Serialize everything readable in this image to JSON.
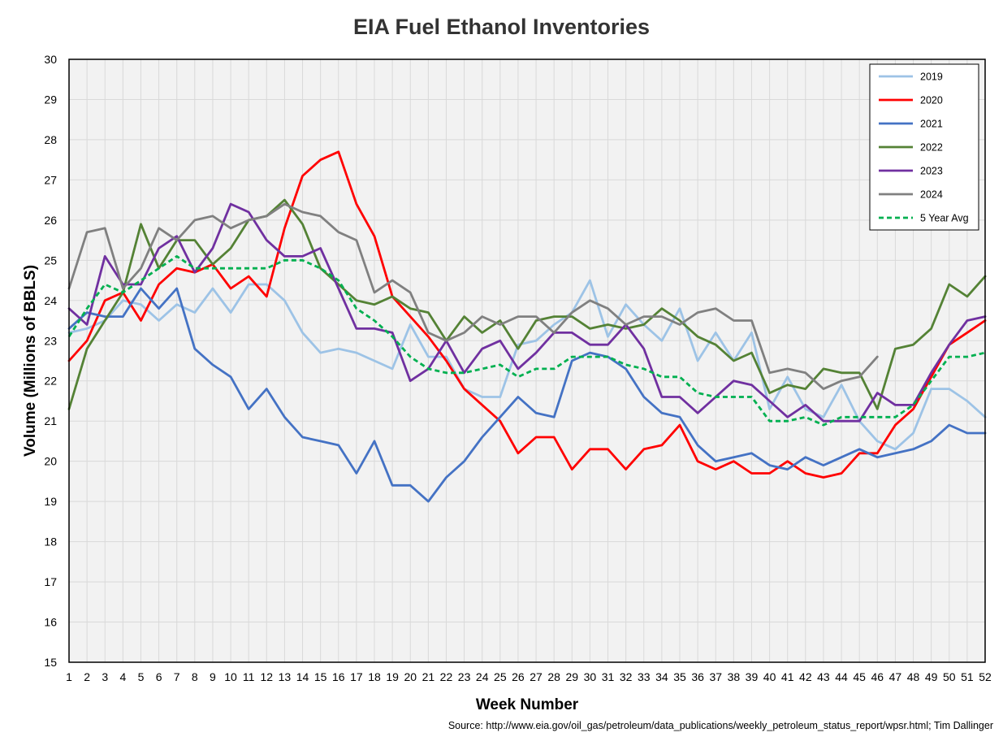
{
  "chart_data": {
    "type": "line",
    "title": "EIA Fuel Ethanol Inventories",
    "xlabel": "Week Number",
    "ylabel": "Volume (Millions of BBLS)",
    "source": "Source: http://www.eia.gov/oil_gas/petroleum/data_publications/weekly_petroleum_status_report/wpsr.html; Tim Dallinger",
    "ylim": [
      15,
      30
    ],
    "yticks": [
      15,
      16,
      17,
      18,
      19,
      20,
      21,
      22,
      23,
      24,
      25,
      26,
      27,
      28,
      29,
      30
    ],
    "x": [
      1,
      2,
      3,
      4,
      5,
      6,
      7,
      8,
      9,
      10,
      11,
      12,
      13,
      14,
      15,
      16,
      17,
      18,
      19,
      20,
      21,
      22,
      23,
      24,
      25,
      26,
      27,
      28,
      29,
      30,
      31,
      32,
      33,
      34,
      35,
      36,
      37,
      38,
      39,
      40,
      41,
      42,
      43,
      44,
      45,
      46,
      47,
      48,
      49,
      50,
      51,
      52
    ],
    "grid": true,
    "background": "#f2f2f2",
    "legend_position": "top-right",
    "series": [
      {
        "name": "2019",
        "color": "#9dc3e6",
        "dashed": false,
        "values": [
          23.2,
          23.3,
          23.5,
          24.0,
          23.9,
          23.5,
          23.9,
          23.7,
          24.3,
          23.7,
          24.4,
          24.4,
          24.0,
          23.2,
          22.7,
          22.8,
          22.7,
          22.5,
          22.3,
          23.4,
          22.6,
          22.6,
          21.8,
          21.6,
          21.6,
          22.9,
          23.0,
          23.4,
          23.7,
          24.5,
          23.1,
          23.9,
          23.4,
          23.0,
          23.8,
          22.5,
          23.2,
          22.5,
          23.2,
          21.3,
          22.1,
          21.3,
          21.1,
          21.9,
          21.0,
          20.5,
          20.3,
          20.7,
          21.8,
          21.8,
          21.5,
          21.1
        ]
      },
      {
        "name": "2020",
        "color": "#ff0000",
        "dashed": false,
        "values": [
          22.5,
          23.0,
          24.0,
          24.2,
          23.5,
          24.4,
          24.8,
          24.7,
          24.9,
          24.3,
          24.6,
          24.1,
          25.8,
          27.1,
          27.5,
          27.7,
          26.4,
          25.6,
          24.1,
          23.6,
          23.1,
          22.5,
          21.8,
          21.4,
          21.0,
          20.2,
          20.6,
          20.6,
          19.8,
          20.3,
          20.3,
          19.8,
          20.3,
          20.4,
          20.9,
          20.0,
          19.8,
          20.0,
          19.7,
          19.7,
          20.0,
          19.7,
          19.6,
          19.7,
          20.2,
          20.2,
          20.9,
          21.3,
          22.1,
          22.9,
          23.2,
          23.5
        ]
      },
      {
        "name": "2021",
        "color": "#4472c4",
        "dashed": false,
        "values": [
          23.3,
          23.7,
          23.6,
          23.6,
          24.3,
          23.8,
          24.3,
          22.8,
          22.4,
          22.1,
          21.3,
          21.8,
          21.1,
          20.6,
          20.5,
          20.4,
          19.7,
          20.5,
          19.4,
          19.4,
          19.0,
          19.6,
          20.0,
          20.6,
          21.1,
          21.6,
          21.2,
          21.1,
          22.5,
          22.7,
          22.6,
          22.3,
          21.6,
          21.2,
          21.1,
          20.4,
          20.0,
          20.1,
          20.2,
          19.9,
          19.8,
          20.1,
          19.9,
          20.1,
          20.3,
          20.1,
          20.2,
          20.3,
          20.5,
          20.9,
          20.7,
          20.7
        ]
      },
      {
        "name": "2022",
        "color": "#548235",
        "dashed": false,
        "values": [
          21.3,
          22.8,
          23.5,
          24.2,
          25.9,
          24.8,
          25.5,
          25.5,
          24.9,
          25.3,
          26.0,
          26.1,
          26.5,
          25.9,
          24.8,
          24.4,
          24.0,
          23.9,
          24.1,
          23.8,
          23.7,
          23.0,
          23.6,
          23.2,
          23.5,
          22.8,
          23.5,
          23.6,
          23.6,
          23.3,
          23.4,
          23.3,
          23.4,
          23.8,
          23.5,
          23.1,
          22.9,
          22.5,
          22.7,
          21.7,
          21.9,
          21.8,
          22.3,
          22.2,
          22.2,
          21.3,
          22.8,
          22.9,
          23.3,
          24.4,
          24.1,
          24.6
        ]
      },
      {
        "name": "2023",
        "color": "#7030a0",
        "dashed": false,
        "values": [
          23.8,
          23.4,
          25.1,
          24.4,
          24.4,
          25.3,
          25.6,
          24.7,
          25.3,
          26.4,
          26.2,
          25.5,
          25.1,
          25.1,
          25.3,
          24.3,
          23.3,
          23.3,
          23.2,
          22.0,
          22.3,
          23.0,
          22.2,
          22.8,
          23.0,
          22.3,
          22.7,
          23.2,
          23.2,
          22.9,
          22.9,
          23.4,
          22.8,
          21.6,
          21.6,
          21.2,
          21.6,
          22.0,
          21.9,
          21.5,
          21.1,
          21.4,
          21.0,
          21.0,
          21.0,
          21.7,
          21.4,
          21.4,
          22.2,
          22.9,
          23.5,
          23.6
        ]
      },
      {
        "name": "2024",
        "color": "#808080",
        "dashed": false,
        "values": [
          24.3,
          25.7,
          25.8,
          24.3,
          24.8,
          25.8,
          25.5,
          26.0,
          26.1,
          25.8,
          26.0,
          26.1,
          26.4,
          26.2,
          26.1,
          25.7,
          25.5,
          24.2,
          24.5,
          24.2,
          23.2,
          23.0,
          23.2,
          23.6,
          23.4,
          23.6,
          23.6,
          23.2,
          23.7,
          24.0,
          23.8,
          23.4,
          23.6,
          23.6,
          23.4,
          23.7,
          23.8,
          23.5,
          23.5,
          22.2,
          22.3,
          22.2,
          21.8,
          22.0,
          22.1,
          22.6,
          null,
          null,
          null,
          null,
          null,
          null
        ]
      },
      {
        "name": "5 Year Avg",
        "color": "#00b050",
        "dashed": true,
        "values": [
          23.1,
          23.8,
          24.4,
          24.2,
          24.5,
          24.8,
          25.1,
          24.8,
          24.8,
          24.8,
          24.8,
          24.8,
          25.0,
          25.0,
          24.8,
          24.5,
          23.8,
          23.5,
          23.1,
          22.6,
          22.3,
          22.2,
          22.2,
          22.3,
          22.4,
          22.1,
          22.3,
          22.3,
          22.6,
          22.6,
          22.6,
          22.4,
          22.3,
          22.1,
          22.1,
          21.7,
          21.6,
          21.6,
          21.6,
          21.0,
          21.0,
          21.1,
          20.9,
          21.1,
          21.1,
          21.1,
          21.1,
          21.4,
          22.0,
          22.6,
          22.6,
          22.7
        ]
      }
    ]
  }
}
